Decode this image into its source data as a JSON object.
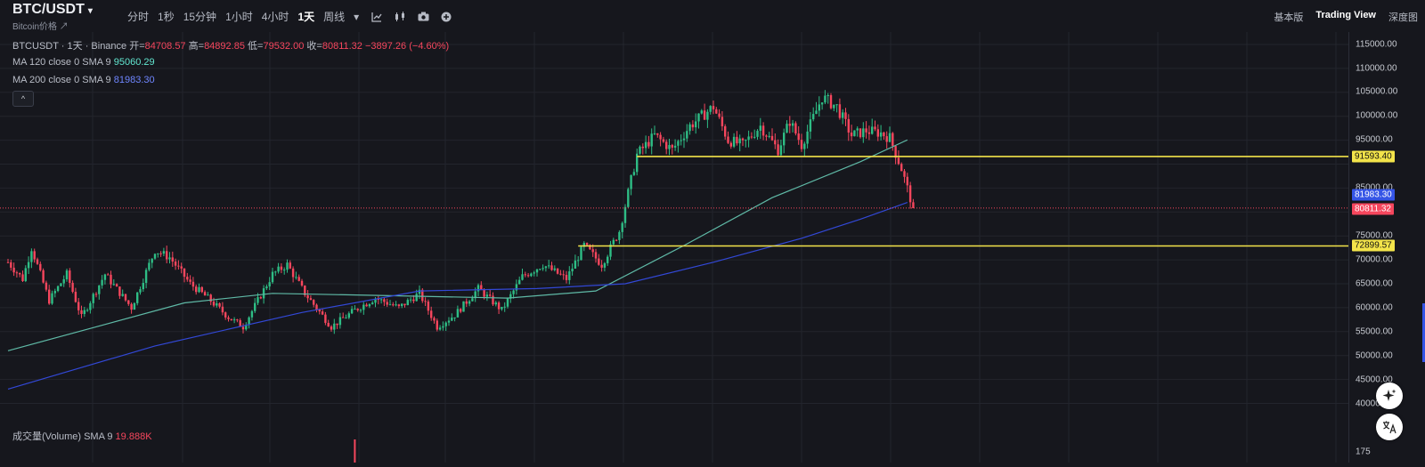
{
  "header": {
    "symbol": "BTC/USDT",
    "symbol_caret": "▾",
    "subtitle": "Bitcoin价格 ↗",
    "timeframes": [
      "分时",
      "1秒",
      "15分钟",
      "1小时",
      "4小时",
      "1天",
      "周线"
    ],
    "active_timeframe": "1天",
    "dropdown_glyph": "▾",
    "tool_icons": [
      "indicator-icon",
      "candle-style-icon",
      "camera-icon",
      "add-icon"
    ],
    "right_nav": [
      "基本版",
      "Trading View",
      "深度图"
    ],
    "right_nav_active": "Trading View"
  },
  "legend": {
    "title": "BTCUSDT · 1天 · Binance",
    "open_label": "开=",
    "open": "84708.57",
    "high_label": "高=",
    "high": "84892.85",
    "low_label": "低=",
    "low": "79532.00",
    "close_label": "收=",
    "close": "80811.32",
    "change": "−3897.26 (−4.60%)",
    "ma120_label": "MA 120 close 0 SMA 9",
    "ma120_value": "95060.29",
    "ma200_label": "MA 200 close 0 SMA 9",
    "ma200_value": "81983.30",
    "collapse_glyph": "^",
    "volume_label": "成交量(Volume) SMA 9",
    "volume_value": "19.888K"
  },
  "axis": {
    "ticks": [
      "115000.00",
      "110000.00",
      "105000.00",
      "100000.00",
      "95000.00",
      "85000.00",
      "75000.00",
      "70000.00",
      "65000.00",
      "60000.00",
      "55000.00",
      "50000.00",
      "45000.00",
      "40000.0",
      "175"
    ],
    "price_tags": [
      {
        "label": "91593.40",
        "bg": "#f3e44a",
        "fg": "#111111"
      },
      {
        "label": "81983.30",
        "bg": "#3555e6",
        "fg": "#ffffff"
      },
      {
        "label": "80811.32",
        "bg": "#f6465d",
        "fg": "#ffffff"
      },
      {
        "label": "72899.57",
        "bg": "#f3e44a",
        "fg": "#111111"
      }
    ]
  },
  "colors": {
    "up": "#2ebd85",
    "down": "#f6465d",
    "ma120": "#5fb9a6",
    "ma200": "#3248d6",
    "hline": "#f3e44a",
    "grid": "#23252d"
  },
  "chart_data": {
    "type": "candlestick",
    "y_range": [
      40000,
      115000
    ],
    "horizontal_lines": [
      91593.4,
      72899.57
    ],
    "last_price": 80811.32,
    "key_points": [
      {
        "t": 0,
        "v": 69500
      },
      {
        "t": 5,
        "v": 66000
      },
      {
        "t": 8,
        "v": 72500
      },
      {
        "t": 14,
        "v": 61500
      },
      {
        "t": 20,
        "v": 67000
      },
      {
        "t": 25,
        "v": 58000
      },
      {
        "t": 33,
        "v": 67000
      },
      {
        "t": 42,
        "v": 60000
      },
      {
        "t": 50,
        "v": 72000
      },
      {
        "t": 55,
        "v": 70500
      },
      {
        "t": 62,
        "v": 65000
      },
      {
        "t": 68,
        "v": 62000
      },
      {
        "t": 75,
        "v": 58000
      },
      {
        "t": 80,
        "v": 56000
      },
      {
        "t": 90,
        "v": 67000
      },
      {
        "t": 95,
        "v": 69000
      },
      {
        "t": 101,
        "v": 63000
      },
      {
        "t": 110,
        "v": 56000
      },
      {
        "t": 118,
        "v": 59500
      },
      {
        "t": 125,
        "v": 62000
      },
      {
        "t": 133,
        "v": 60000
      },
      {
        "t": 140,
        "v": 63000
      },
      {
        "t": 146,
        "v": 56000
      },
      {
        "t": 152,
        "v": 58500
      },
      {
        "t": 160,
        "v": 64000
      },
      {
        "t": 168,
        "v": 59500
      },
      {
        "t": 175,
        "v": 66500
      },
      {
        "t": 182,
        "v": 69000
      },
      {
        "t": 190,
        "v": 66000
      },
      {
        "t": 196,
        "v": 73000
      },
      {
        "t": 202,
        "v": 69000
      },
      {
        "t": 208,
        "v": 76000
      },
      {
        "t": 214,
        "v": 92000
      },
      {
        "t": 220,
        "v": 96000
      },
      {
        "t": 226,
        "v": 93000
      },
      {
        "t": 232,
        "v": 98000
      },
      {
        "t": 240,
        "v": 102000
      },
      {
        "t": 245,
        "v": 95000
      },
      {
        "t": 250,
        "v": 94000
      },
      {
        "t": 256,
        "v": 98000
      },
      {
        "t": 262,
        "v": 93000
      },
      {
        "t": 266,
        "v": 99000
      },
      {
        "t": 270,
        "v": 94000
      },
      {
        "t": 277,
        "v": 104000
      },
      {
        "t": 282,
        "v": 102000
      },
      {
        "t": 287,
        "v": 96000
      },
      {
        "t": 292,
        "v": 97000
      },
      {
        "t": 297,
        "v": 96500
      },
      {
        "t": 300,
        "v": 95500
      },
      {
        "t": 304,
        "v": 89000
      },
      {
        "t": 308,
        "v": 80811
      }
    ],
    "ma120": [
      {
        "t": 0,
        "v": 51000
      },
      {
        "t": 30,
        "v": 56000
      },
      {
        "t": 60,
        "v": 61000
      },
      {
        "t": 90,
        "v": 63000
      },
      {
        "t": 130,
        "v": 62500
      },
      {
        "t": 170,
        "v": 62000
      },
      {
        "t": 200,
        "v": 63500
      },
      {
        "t": 230,
        "v": 73000
      },
      {
        "t": 260,
        "v": 83000
      },
      {
        "t": 290,
        "v": 90500
      },
      {
        "t": 306,
        "v": 95060
      }
    ],
    "ma200": [
      {
        "t": 0,
        "v": 43000
      },
      {
        "t": 50,
        "v": 52000
      },
      {
        "t": 100,
        "v": 59000
      },
      {
        "t": 140,
        "v": 63500
      },
      {
        "t": 180,
        "v": 64000
      },
      {
        "t": 210,
        "v": 65000
      },
      {
        "t": 240,
        "v": 69500
      },
      {
        "t": 270,
        "v": 74500
      },
      {
        "t": 290,
        "v": 78500
      },
      {
        "t": 306,
        "v": 81983
      }
    ],
    "volume_spike_at": 118
  }
}
